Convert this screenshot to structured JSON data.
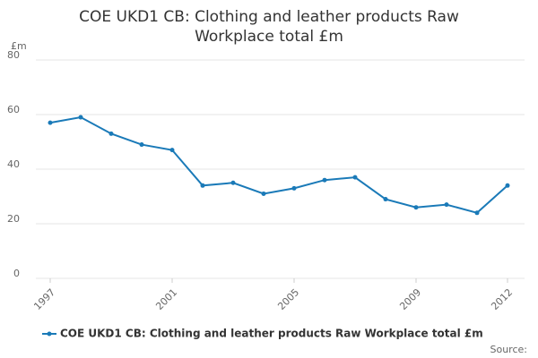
{
  "chart_data": {
    "type": "line",
    "title": "COE UKD1 CB: Clothing and leather products Raw Workplace total £m",
    "y_unit": "£m",
    "source": "Source:",
    "x": [
      1997,
      1998,
      1999,
      2000,
      2001,
      2002,
      2003,
      2004,
      2005,
      2006,
      2007,
      2008,
      2009,
      2010,
      2011,
      2012
    ],
    "series": [
      {
        "name": "COE UKD1 CB: Clothing and leather products Raw Workplace total £m",
        "color": "#1a7ab8",
        "values": [
          57,
          59,
          53,
          49,
          47,
          34,
          35,
          31,
          33,
          36,
          37,
          29,
          26,
          27,
          24,
          34
        ]
      }
    ],
    "xlim": [
      1997,
      2012
    ],
    "xticks": [
      1997,
      2001,
      2005,
      2009,
      2012
    ],
    "ylim": [
      0,
      80
    ],
    "yticks": [
      0,
      20,
      40,
      60,
      80
    ],
    "grid": true
  }
}
